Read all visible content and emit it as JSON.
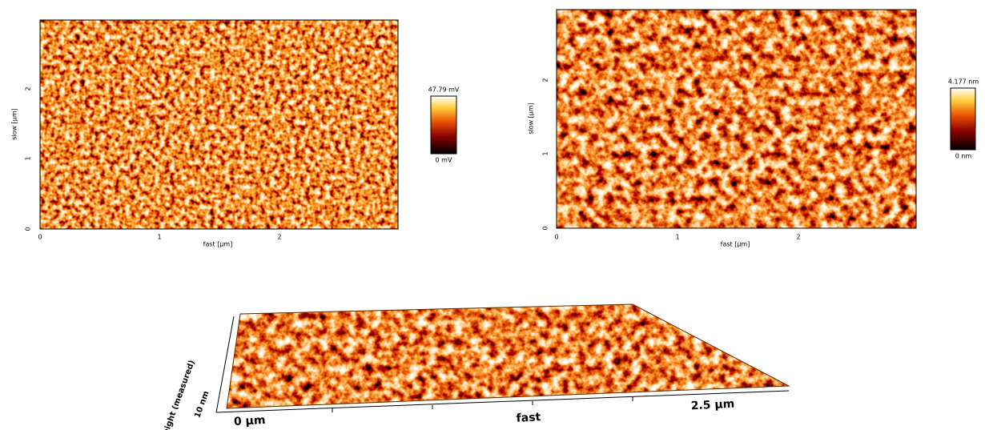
{
  "panels": [
    {
      "x_label": "fast [µm]",
      "y_label": "slow [µm]",
      "x_ticks": [
        "0",
        "1",
        "2"
      ],
      "y_ticks": [
        "0",
        "1",
        "2"
      ],
      "colorbar_max": "47.79 mV",
      "colorbar_min": "0 mV"
    },
    {
      "x_label": "fast [µm]",
      "y_label": "slow [µm]",
      "x_ticks": [
        "0",
        "1",
        "2"
      ],
      "y_ticks": [
        "0",
        "1",
        "2"
      ],
      "colorbar_max": "4.177 nm",
      "colorbar_min": "0 nm"
    }
  ],
  "view3d": {
    "x_start": "0 µm",
    "x_end": "2.5 µm",
    "x_label": "fast",
    "z_scale": "10 nm",
    "z_label": "Height (measured)"
  }
}
